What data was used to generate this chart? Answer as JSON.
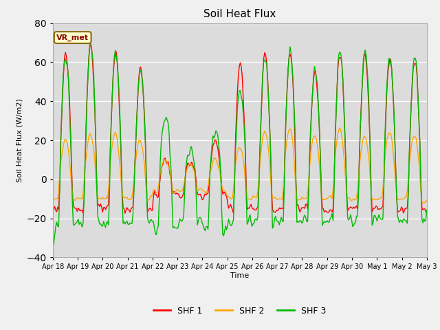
{
  "title": "Soil Heat Flux",
  "ylabel": "Soil Heat Flux (W/m2)",
  "xlabel": "Time",
  "ylim": [
    -40,
    80
  ],
  "xlim": [
    0,
    360
  ],
  "plot_bg_color": "#dcdcdc",
  "fig_bg_color": "#f0f0f0",
  "grid_color": "#ffffff",
  "series_colors": [
    "#ff0000",
    "#ffa500",
    "#00bb00"
  ],
  "series_labels": [
    "SHF 1",
    "SHF 2",
    "SHF 3"
  ],
  "tick_labels": [
    "Apr 18",
    "Apr 19",
    "Apr 20",
    "Apr 21",
    "Apr 22",
    "Apr 23",
    "Apr 24",
    "Apr 25",
    "Apr 26",
    "Apr 27",
    "Apr 28",
    "Apr 29",
    "Apr 30",
    "May 1",
    "May 2",
    "May 3"
  ],
  "tick_positions": [
    0,
    24,
    48,
    72,
    96,
    120,
    144,
    168,
    192,
    216,
    240,
    264,
    288,
    312,
    336,
    360
  ],
  "yticks": [
    -40,
    -20,
    0,
    20,
    40,
    60,
    80
  ],
  "annotation_text": "VR_met",
  "linewidth": 1.0
}
